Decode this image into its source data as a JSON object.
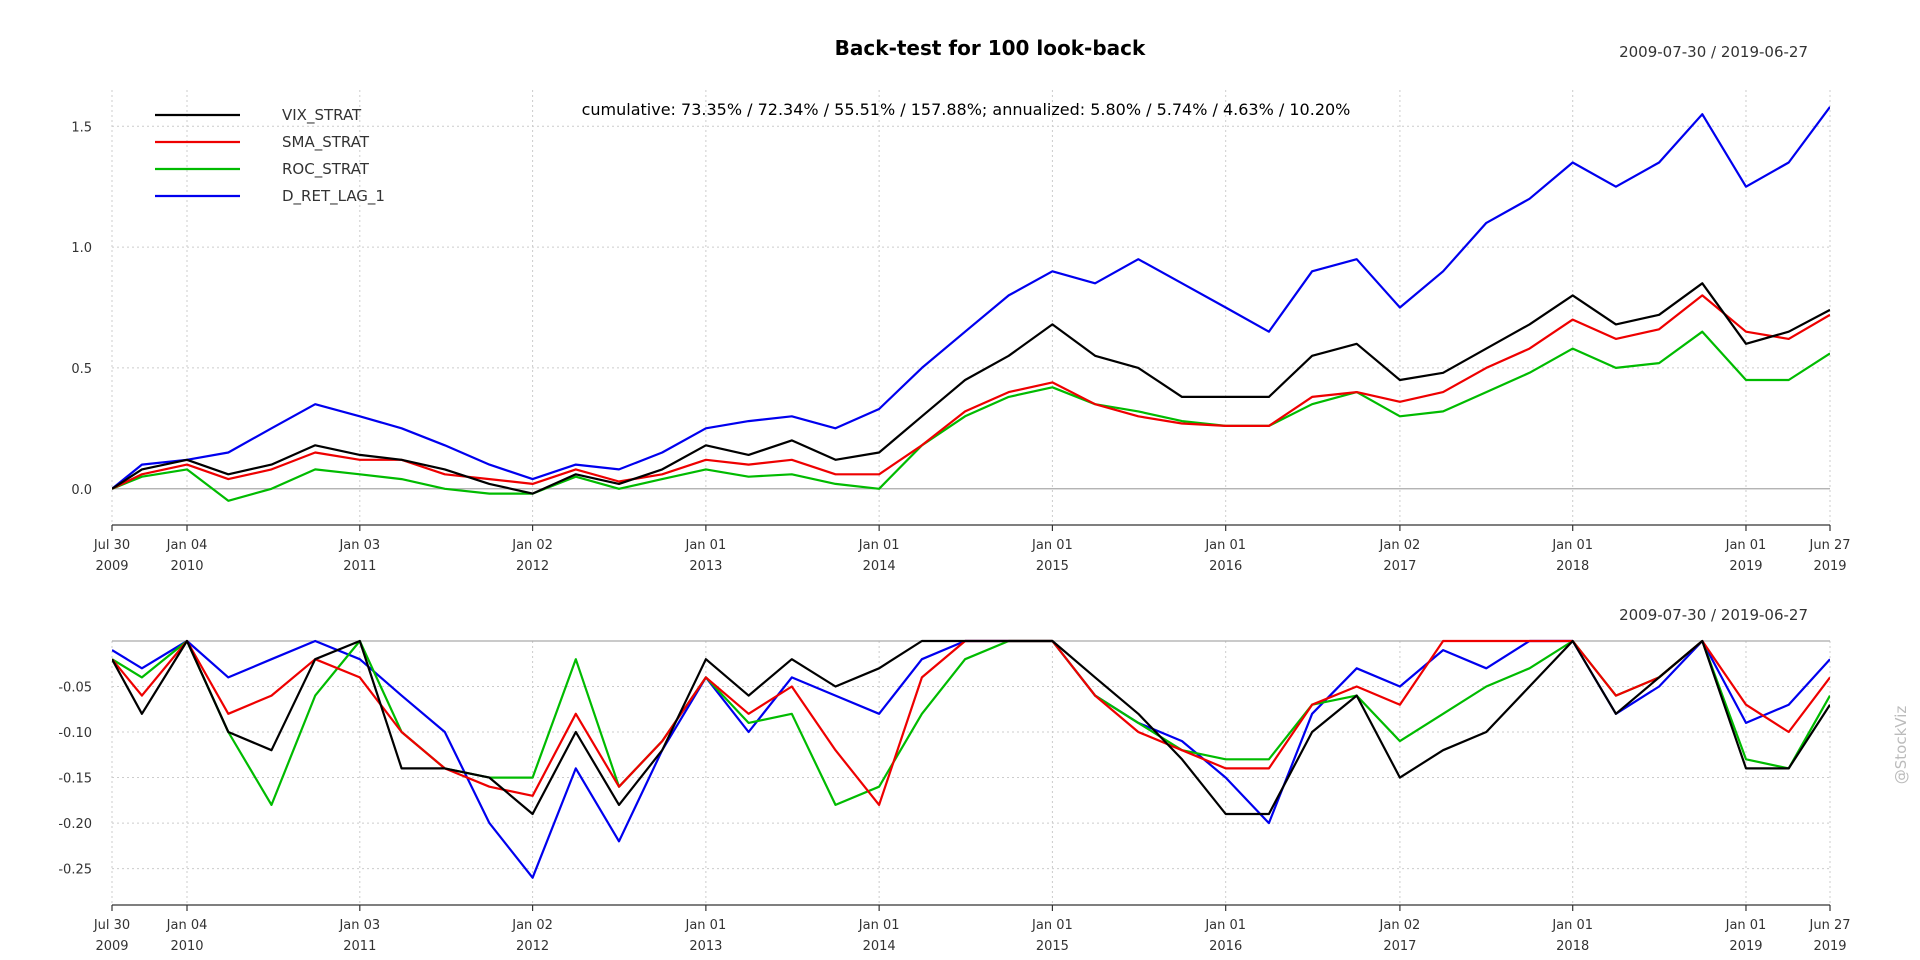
{
  "watermark": "@StockViz",
  "colors": {
    "VIX_STRAT": "#000000",
    "SMA_STRAT": "#ee0000",
    "ROC_STRAT": "#00bb00",
    "D_RET_LAG_1": "#0000ee"
  },
  "chart_data": [
    {
      "type": "line",
      "title": "Back-test for 100 look-back",
      "date_range": "2009-07-30 / 2019-06-27",
      "annotation": "cumulative: 73.35% / 72.34% / 55.51% / 157.88%; annualized: 5.80% / 5.74% / 4.63% / 10.20%",
      "legend": "top-left",
      "grid": true,
      "x_range": [
        "2009-07-30",
        "2019-06-27"
      ],
      "ylim": [
        -0.15,
        1.65
      ],
      "y_ticks": [
        0.0,
        0.5,
        1.0,
        1.5
      ],
      "y_tick_labels": [
        "0.0",
        "0.5",
        "1.0",
        "1.5"
      ],
      "x_ticks": [
        {
          "date": "2009-07-30",
          "line1": "Jul 30",
          "line2": "2009"
        },
        {
          "date": "2010-01-04",
          "line1": "Jan 04",
          "line2": "2010"
        },
        {
          "date": "2011-01-03",
          "line1": "Jan 03",
          "line2": "2011"
        },
        {
          "date": "2012-01-02",
          "line1": "Jan 02",
          "line2": "2012"
        },
        {
          "date": "2013-01-01",
          "line1": "Jan 01",
          "line2": "2013"
        },
        {
          "date": "2014-01-01",
          "line1": "Jan 01",
          "line2": "2014"
        },
        {
          "date": "2015-01-01",
          "line1": "Jan 01",
          "line2": "2015"
        },
        {
          "date": "2016-01-01",
          "line1": "Jan 01",
          "line2": "2016"
        },
        {
          "date": "2017-01-02",
          "line1": "Jan 02",
          "line2": "2017"
        },
        {
          "date": "2018-01-01",
          "line1": "Jan 01",
          "line2": "2018"
        },
        {
          "date": "2019-01-01",
          "line1": "Jan 01",
          "line2": "2019"
        },
        {
          "date": "2019-06-27",
          "line1": "Jun 27",
          "line2": "2019"
        }
      ],
      "x": [
        "2009-07-30",
        "2009-10-01",
        "2010-01-04",
        "2010-04-01",
        "2010-07-01",
        "2010-10-01",
        "2011-01-03",
        "2011-04-01",
        "2011-07-01",
        "2011-10-03",
        "2012-01-02",
        "2012-04-02",
        "2012-07-02",
        "2012-10-01",
        "2013-01-01",
        "2013-04-01",
        "2013-07-01",
        "2013-10-01",
        "2014-01-01",
        "2014-04-01",
        "2014-07-01",
        "2014-10-01",
        "2015-01-01",
        "2015-04-01",
        "2015-07-01",
        "2015-10-01",
        "2016-01-01",
        "2016-04-01",
        "2016-07-01",
        "2016-10-03",
        "2017-01-02",
        "2017-04-03",
        "2017-07-03",
        "2017-10-02",
        "2018-01-01",
        "2018-04-02",
        "2018-07-02",
        "2018-10-01",
        "2019-01-01",
        "2019-04-01",
        "2019-06-27"
      ],
      "series": [
        {
          "name": "VIX_STRAT",
          "values": [
            0.0,
            0.08,
            0.12,
            0.06,
            0.1,
            0.18,
            0.14,
            0.12,
            0.08,
            0.02,
            -0.02,
            0.06,
            0.02,
            0.08,
            0.18,
            0.14,
            0.2,
            0.12,
            0.15,
            0.3,
            0.45,
            0.55,
            0.68,
            0.55,
            0.5,
            0.38,
            0.38,
            0.38,
            0.55,
            0.6,
            0.45,
            0.48,
            0.58,
            0.68,
            0.8,
            0.68,
            0.72,
            0.85,
            0.6,
            0.65,
            0.74
          ]
        },
        {
          "name": "SMA_STRAT",
          "values": [
            0.0,
            0.06,
            0.1,
            0.04,
            0.08,
            0.15,
            0.12,
            0.12,
            0.06,
            0.04,
            0.02,
            0.08,
            0.03,
            0.06,
            0.12,
            0.1,
            0.12,
            0.06,
            0.06,
            0.18,
            0.32,
            0.4,
            0.44,
            0.35,
            0.3,
            0.27,
            0.26,
            0.26,
            0.38,
            0.4,
            0.36,
            0.4,
            0.5,
            0.58,
            0.7,
            0.62,
            0.66,
            0.8,
            0.65,
            0.62,
            0.72
          ]
        },
        {
          "name": "ROC_STRAT",
          "values": [
            0.0,
            0.05,
            0.08,
            -0.05,
            0.0,
            0.08,
            0.06,
            0.04,
            0.0,
            -0.02,
            -0.02,
            0.05,
            0.0,
            0.04,
            0.08,
            0.05,
            0.06,
            0.02,
            0.0,
            0.18,
            0.3,
            0.38,
            0.42,
            0.35,
            0.32,
            0.28,
            0.26,
            0.26,
            0.35,
            0.4,
            0.3,
            0.32,
            0.4,
            0.48,
            0.58,
            0.5,
            0.52,
            0.65,
            0.45,
            0.45,
            0.56
          ]
        },
        {
          "name": "D_RET_LAG_1",
          "values": [
            0.0,
            0.1,
            0.12,
            0.15,
            0.25,
            0.35,
            0.3,
            0.25,
            0.18,
            0.1,
            0.04,
            0.1,
            0.08,
            0.15,
            0.25,
            0.28,
            0.3,
            0.25,
            0.33,
            0.5,
            0.65,
            0.8,
            0.9,
            0.85,
            0.95,
            0.85,
            0.75,
            0.65,
            0.9,
            0.95,
            0.75,
            0.9,
            1.1,
            1.2,
            1.35,
            1.25,
            1.35,
            1.55,
            1.25,
            1.35,
            1.58
          ]
        }
      ]
    },
    {
      "type": "line",
      "title": "",
      "date_range": "2009-07-30 / 2019-06-27",
      "grid": true,
      "x_range": [
        "2009-07-30",
        "2019-06-27"
      ],
      "ylim": [
        -0.29,
        0.0
      ],
      "y_ticks": [
        -0.05,
        -0.1,
        -0.15,
        -0.2,
        -0.25
      ],
      "y_tick_labels": [
        "-0.05",
        "-0.10",
        "-0.15",
        "-0.20",
        "-0.25"
      ],
      "x_ticks": [
        {
          "date": "2009-07-30",
          "line1": "Jul 30",
          "line2": "2009"
        },
        {
          "date": "2010-01-04",
          "line1": "Jan 04",
          "line2": "2010"
        },
        {
          "date": "2011-01-03",
          "line1": "Jan 03",
          "line2": "2011"
        },
        {
          "date": "2012-01-02",
          "line1": "Jan 02",
          "line2": "2012"
        },
        {
          "date": "2013-01-01",
          "line1": "Jan 01",
          "line2": "2013"
        },
        {
          "date": "2014-01-01",
          "line1": "Jan 01",
          "line2": "2014"
        },
        {
          "date": "2015-01-01",
          "line1": "Jan 01",
          "line2": "2015"
        },
        {
          "date": "2016-01-01",
          "line1": "Jan 01",
          "line2": "2016"
        },
        {
          "date": "2017-01-02",
          "line1": "Jan 02",
          "line2": "2017"
        },
        {
          "date": "2018-01-01",
          "line1": "Jan 01",
          "line2": "2018"
        },
        {
          "date": "2019-01-01",
          "line1": "Jan 01",
          "line2": "2019"
        },
        {
          "date": "2019-06-27",
          "line1": "Jun 27",
          "line2": "2019"
        }
      ],
      "x": [
        "2009-07-30",
        "2009-10-01",
        "2010-01-04",
        "2010-04-01",
        "2010-07-01",
        "2010-10-01",
        "2011-01-03",
        "2011-04-01",
        "2011-07-01",
        "2011-10-03",
        "2012-01-02",
        "2012-04-02",
        "2012-07-02",
        "2012-10-01",
        "2013-01-01",
        "2013-04-01",
        "2013-07-01",
        "2013-10-01",
        "2014-01-01",
        "2014-04-01",
        "2014-07-01",
        "2014-10-01",
        "2015-01-01",
        "2015-04-01",
        "2015-07-01",
        "2015-10-01",
        "2016-01-01",
        "2016-04-01",
        "2016-07-01",
        "2016-10-03",
        "2017-01-02",
        "2017-04-03",
        "2017-07-03",
        "2017-10-02",
        "2018-01-01",
        "2018-04-02",
        "2018-07-02",
        "2018-10-01",
        "2019-01-01",
        "2019-04-01",
        "2019-06-27"
      ],
      "series": [
        {
          "name": "VIX_STRAT",
          "values": [
            -0.02,
            -0.08,
            0.0,
            -0.1,
            -0.12,
            -0.02,
            0.0,
            -0.14,
            -0.14,
            -0.15,
            -0.19,
            -0.1,
            -0.18,
            -0.12,
            -0.02,
            -0.06,
            -0.02,
            -0.05,
            -0.03,
            0.0,
            0.0,
            0.0,
            0.0,
            -0.04,
            -0.08,
            -0.13,
            -0.19,
            -0.19,
            -0.1,
            -0.06,
            -0.15,
            -0.12,
            -0.1,
            -0.05,
            0.0,
            -0.08,
            -0.04,
            0.0,
            -0.14,
            -0.14,
            -0.07
          ]
        },
        {
          "name": "SMA_STRAT",
          "values": [
            -0.02,
            -0.06,
            0.0,
            -0.08,
            -0.06,
            -0.02,
            -0.04,
            -0.1,
            -0.14,
            -0.16,
            -0.17,
            -0.08,
            -0.16,
            -0.11,
            -0.04,
            -0.08,
            -0.05,
            -0.12,
            -0.18,
            -0.04,
            0.0,
            0.0,
            0.0,
            -0.06,
            -0.1,
            -0.12,
            -0.14,
            -0.14,
            -0.07,
            -0.05,
            -0.07,
            0.0,
            0.0,
            0.0,
            0.0,
            -0.06,
            -0.04,
            0.0,
            -0.07,
            -0.1,
            -0.04
          ]
        },
        {
          "name": "ROC_STRAT",
          "values": [
            -0.02,
            -0.04,
            0.0,
            -0.1,
            -0.18,
            -0.06,
            0.0,
            -0.1,
            -0.14,
            -0.15,
            -0.15,
            -0.02,
            -0.16,
            -0.11,
            -0.04,
            -0.09,
            -0.08,
            -0.18,
            -0.16,
            -0.08,
            -0.02,
            0.0,
            0.0,
            -0.06,
            -0.09,
            -0.12,
            -0.13,
            -0.13,
            -0.07,
            -0.06,
            -0.11,
            -0.08,
            -0.05,
            -0.03,
            0.0,
            -0.06,
            -0.04,
            0.0,
            -0.13,
            -0.14,
            -0.06
          ]
        },
        {
          "name": "D_RET_LAG_1",
          "values": [
            -0.01,
            -0.03,
            0.0,
            -0.04,
            -0.02,
            0.0,
            -0.02,
            -0.06,
            -0.1,
            -0.2,
            -0.26,
            -0.14,
            -0.22,
            -0.12,
            -0.04,
            -0.1,
            -0.04,
            -0.06,
            -0.08,
            -0.02,
            0.0,
            0.0,
            0.0,
            -0.06,
            -0.09,
            -0.11,
            -0.15,
            -0.2,
            -0.08,
            -0.03,
            -0.05,
            -0.01,
            -0.03,
            0.0,
            0.0,
            -0.08,
            -0.05,
            0.0,
            -0.09,
            -0.07,
            -0.02
          ]
        }
      ]
    }
  ]
}
